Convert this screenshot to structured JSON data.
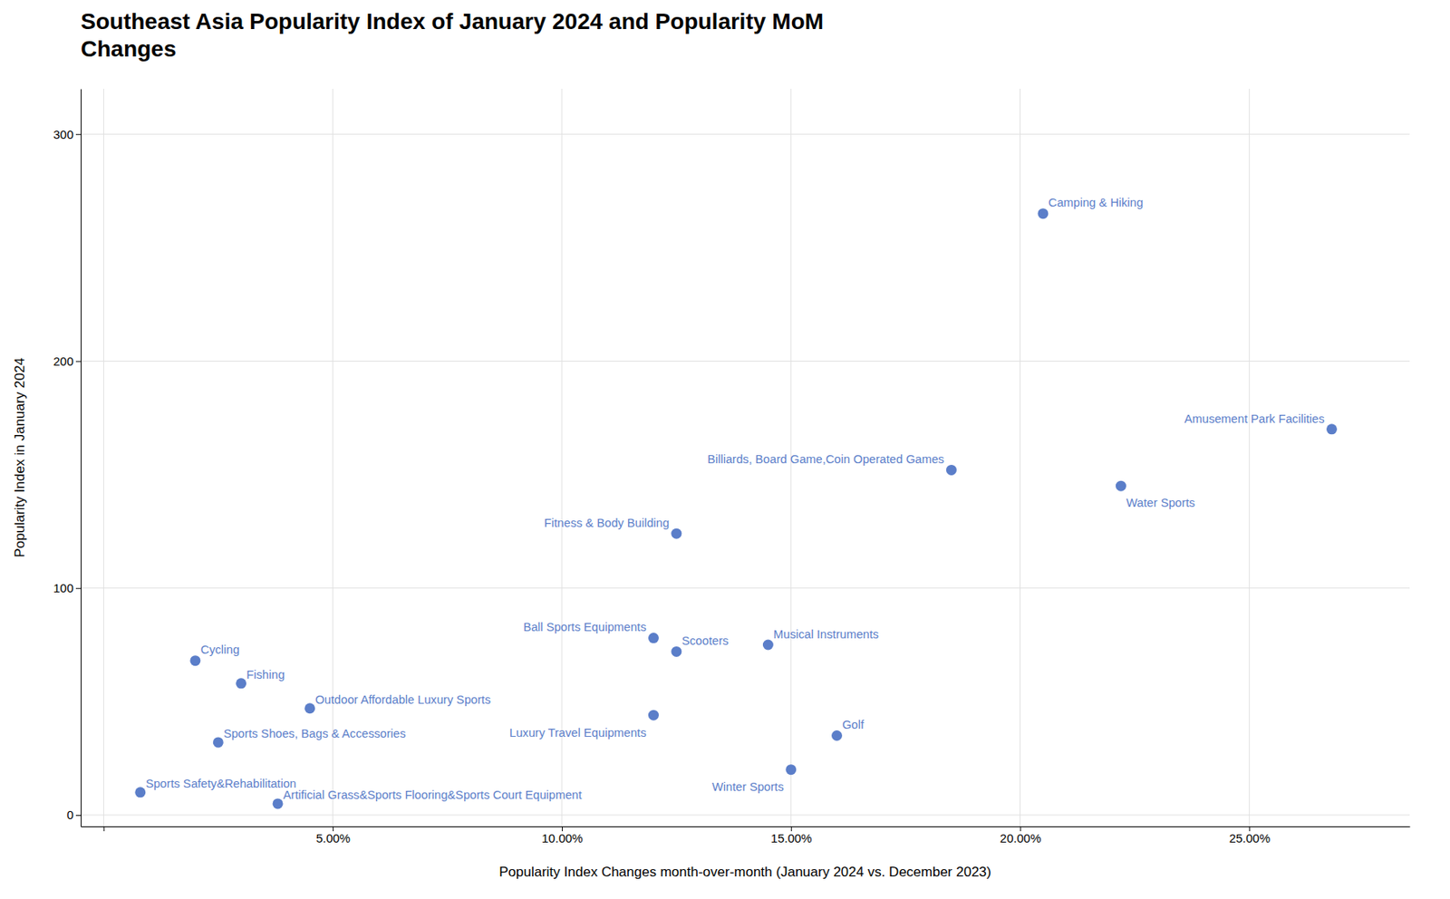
{
  "chart_data": {
    "type": "scatter",
    "title": "Southeast Asia Popularity Index of January 2024 and Popularity MoM\nChanges",
    "xlabel": "Popularity Index Changes month-over-month (January 2024 vs. December 2023)",
    "ylabel": "Popularity Index in January 2024",
    "color": "#5b7ec9",
    "grid": true,
    "x": [
      0.205,
      0.268,
      0.185,
      0.125,
      0.222,
      0.12,
      0.125,
      0.145,
      0.12,
      0.16,
      0.15,
      0.02,
      0.03,
      0.045,
      0.025,
      0.008,
      0.038
    ],
    "values": [
      265,
      170,
      152,
      124,
      145,
      78,
      72,
      75,
      44,
      35,
      20,
      68,
      58,
      47,
      32,
      10,
      5
    ],
    "annotations": [
      "Camping & Hiking",
      "Amusement Park Facilities",
      "Billiards, Board Game,Coin Operated Games",
      "Fitness & Body Building",
      "Water Sports",
      "Ball Sports Equipments",
      "Scooters",
      "Musical Instruments",
      "Luxury Travel Equipments",
      "Golf",
      "Winter Sports",
      "Cycling",
      "Fishing",
      "Outdoor Affordable Luxury Sports",
      "Sports Shoes, Bags & Accessories",
      "Sports Safety&Rehabilitation",
      "Artificial Grass&Sports Flooring&Sports Court Equipment"
    ],
    "xlim": [
      -0.005,
      0.285
    ],
    "xticks": [
      {
        "value": 0.0,
        "label": null
      },
      {
        "value": 0.05,
        "label": "5.00%"
      },
      {
        "value": 0.1,
        "label": "10.00%"
      },
      {
        "value": 0.15,
        "label": "15.00%"
      },
      {
        "value": 0.2,
        "label": "20.00%"
      },
      {
        "value": 0.25,
        "label": "25.00%"
      }
    ],
    "ylim": [
      -5,
      320
    ],
    "yticks": [
      0,
      100,
      200,
      300
    ]
  }
}
